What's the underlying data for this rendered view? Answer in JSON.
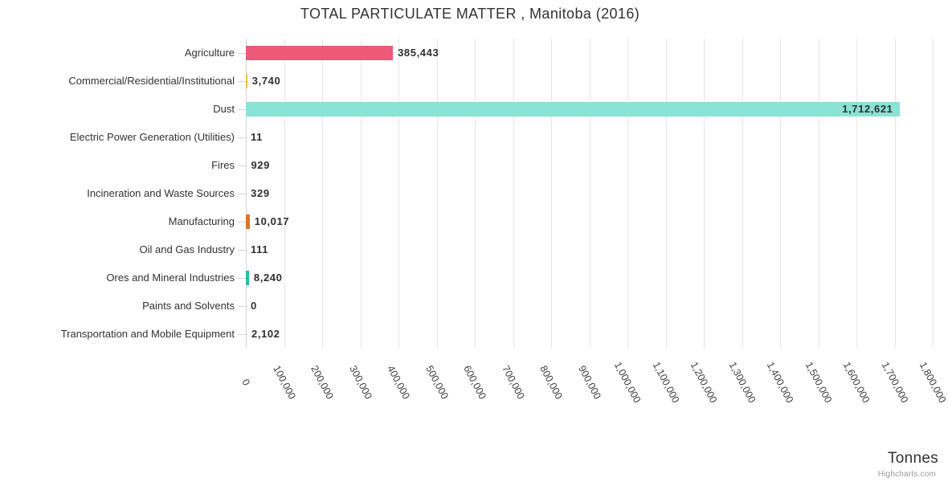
{
  "credits": {
    "label": "Highcharts.com"
  },
  "chart_data": {
    "type": "bar",
    "orientation": "horizontal",
    "title": "TOTAL PARTICULATE MATTER , Manitoba (2016)",
    "xlabel": "Tonnes",
    "ylabel": "",
    "legend": "none",
    "grid": true,
    "xlim": [
      0,
      1800000
    ],
    "tick_interval": 100000,
    "tick_labels": [
      "0",
      "100,000",
      "200,000",
      "300,000",
      "400,000",
      "500,000",
      "600,000",
      "700,000",
      "800,000",
      "900,000",
      "1,000,000",
      "1,100,000",
      "1,200,000",
      "1,300,000",
      "1,400,000",
      "1,500,000",
      "1,600,000",
      "1,700,000",
      "1,800,000"
    ],
    "categories": [
      "Agriculture",
      "Commercial/Residential/Institutional",
      "Dust",
      "Electric Power Generation (Utilities)",
      "Fires",
      "Incineration and Waste Sources",
      "Manufacturing",
      "Oil and Gas Industry",
      "Ores and Mineral Industries",
      "Paints and Solvents",
      "Transportation and Mobile Equipment"
    ],
    "values": [
      385443,
      3740,
      1712621,
      11,
      929,
      329,
      10017,
      111,
      8240,
      0,
      2102
    ],
    "value_labels": [
      "385,443",
      "3,740",
      "1,712,621",
      "11",
      "929",
      "329",
      "10,017",
      "111",
      "8,240",
      "0",
      "2,102"
    ],
    "bar_colors": {
      "0": "#ed5a78",
      "1": "#e7be3f",
      "2": "#8ae3d4",
      "6": "#e2731f",
      "8": "#25bfa0"
    }
  }
}
